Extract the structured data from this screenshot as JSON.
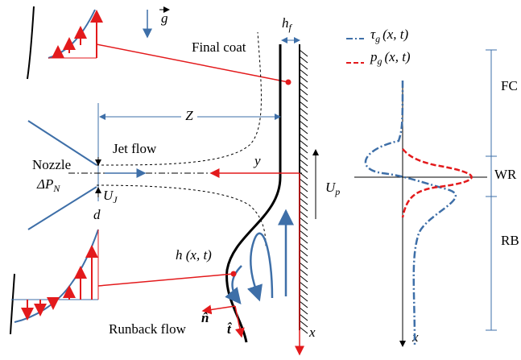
{
  "labels": {
    "gravity": "g",
    "final_coat": "Final coat",
    "hf": {
      "text": "h",
      "sub": "f"
    },
    "z": "Z",
    "jet_flow": "Jet flow",
    "nozzle": "Nozzle",
    "delta_pn": {
      "text": "ΔP",
      "sub": "N"
    },
    "uj": {
      "text": "U",
      "sub": "J"
    },
    "d": "d",
    "y": "y",
    "up": {
      "text": "U",
      "sub": "p"
    },
    "h": "h (x, t)",
    "n": "n̂",
    "t": "t̂",
    "runback_flow": "Runback flow",
    "x": "x"
  },
  "legend": [
    {
      "text": "τ",
      "sub": "g",
      "args": "(x, t)"
    },
    {
      "text": "p",
      "sub": "g",
      "args": "(x, t)"
    }
  ],
  "regions": [
    "FC",
    "WR",
    "RB"
  ],
  "plot_axis": "x"
}
